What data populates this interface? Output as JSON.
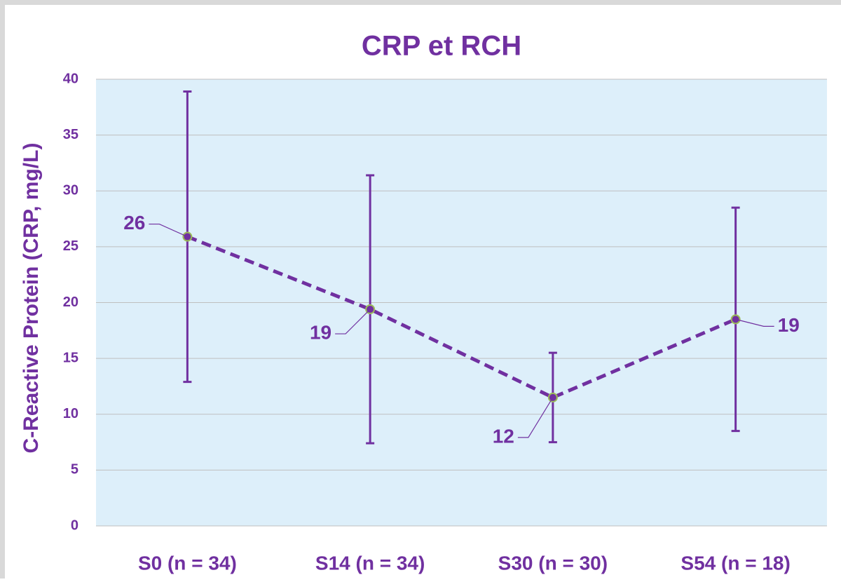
{
  "chart_data": {
    "type": "line",
    "title": "CRP et RCH",
    "y_label": "C-Reactive Protein (CRP, mg/L)",
    "categories": [
      "S0 (n = 34)",
      "S14 (n = 34)",
      "S30 (n = 30)",
      "S54 (n = 18)"
    ],
    "series": [
      {
        "name": "CRP",
        "color": "#7030a0",
        "marker_edge": "#9bbb59",
        "values": [
          25.9,
          19.4,
          11.5,
          18.5
        ],
        "errors": [
          13,
          12,
          4,
          10
        ],
        "value_labels": [
          "26",
          "19",
          "12",
          "19"
        ]
      }
    ],
    "ylim": [
      0,
      40
    ],
    "yticks": [
      0,
      5,
      10,
      15,
      20,
      25,
      30,
      35,
      40
    ],
    "grid": true,
    "plot_background": "#ddeffa",
    "line_style": "dashed"
  }
}
